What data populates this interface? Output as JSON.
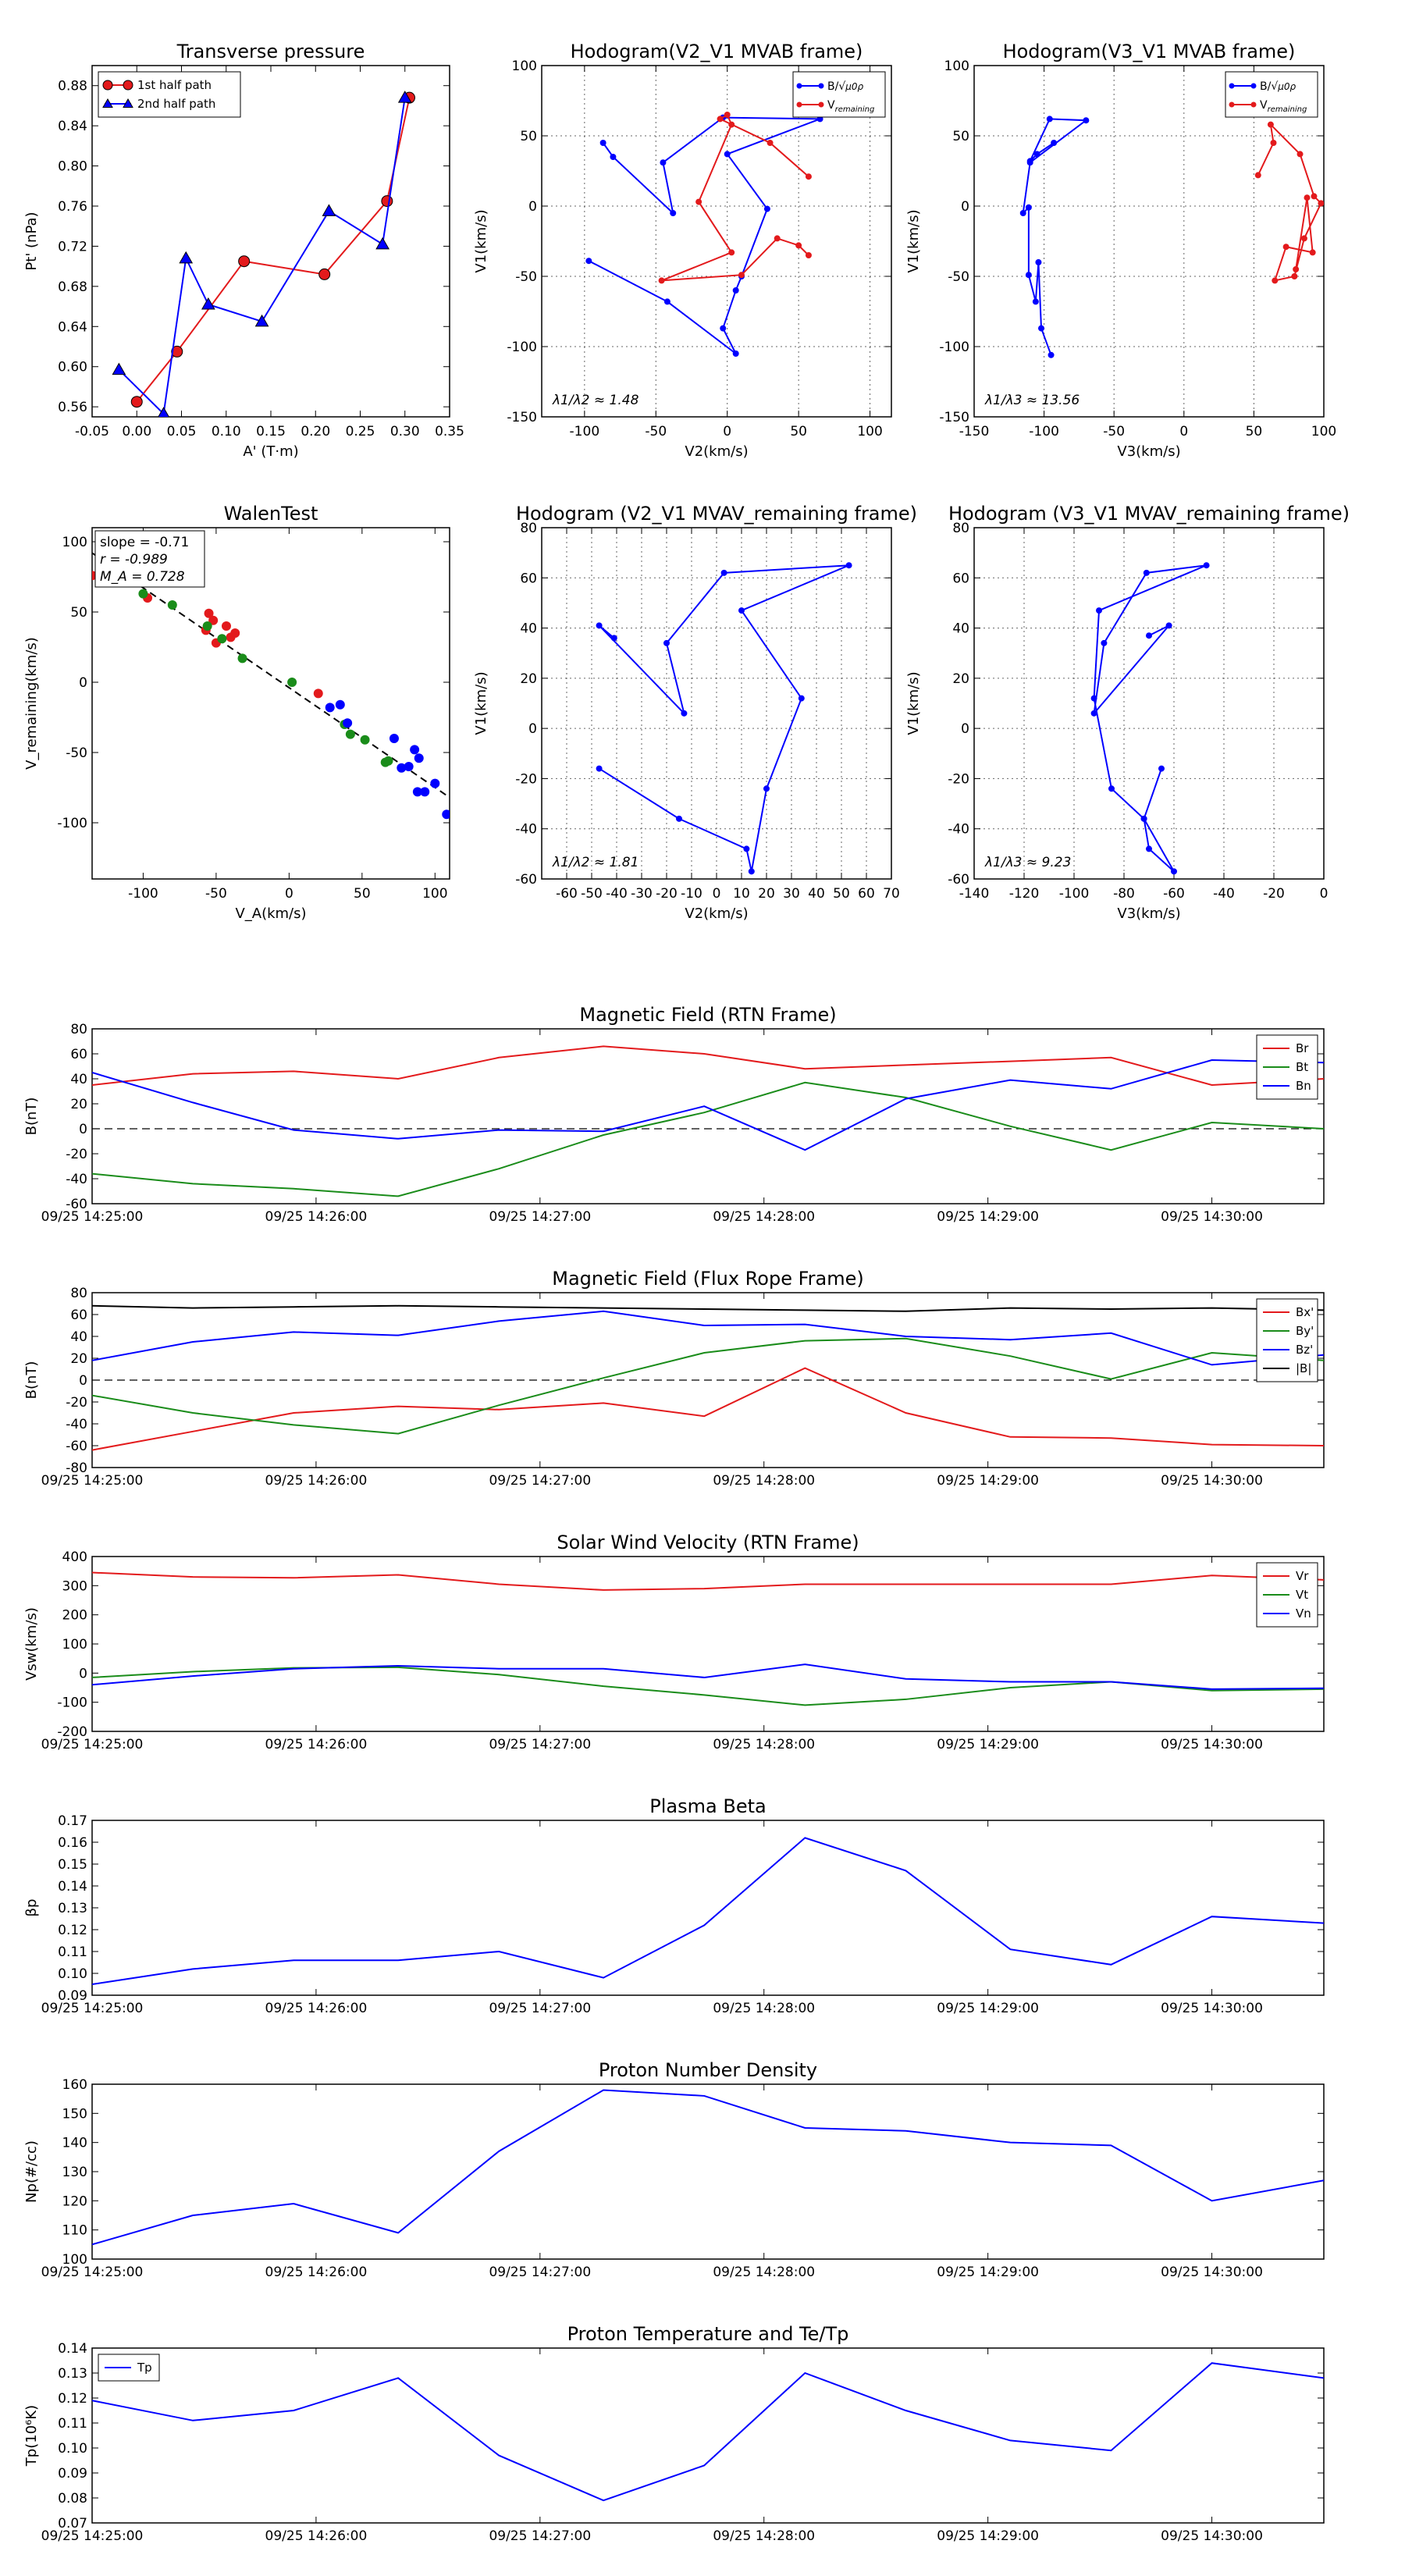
{
  "chart_data": [
    {
      "id": "transverse_pressure",
      "type": "line",
      "title": "Transverse pressure",
      "xlabel": "A' (T·m)",
      "ylabel": "Pt' (nPa)",
      "xlim": [
        -0.05,
        0.35
      ],
      "ylim": [
        0.55,
        0.9
      ],
      "xticks": [
        -0.05,
        0.0,
        0.05,
        0.1,
        0.15,
        0.2,
        0.25,
        0.3,
        0.35
      ],
      "yticks": [
        0.56,
        0.6,
        0.64,
        0.68,
        0.72,
        0.76,
        0.8,
        0.84,
        0.88
      ],
      "grid": false,
      "legend_position": "top-left",
      "series": [
        {
          "name": "1st half path",
          "color": "#e31a1c",
          "marker": "circle",
          "x": [
            0.0,
            0.045,
            0.12,
            0.21,
            0.28,
            0.305
          ],
          "y": [
            0.565,
            0.615,
            0.705,
            0.692,
            0.765,
            0.868
          ]
        },
        {
          "name": "2nd half path",
          "color": "#0000ff",
          "marker": "triangle",
          "x": [
            -0.02,
            0.03,
            0.055,
            0.08,
            0.14,
            0.215,
            0.275,
            0.3
          ],
          "y": [
            0.597,
            0.553,
            0.708,
            0.662,
            0.645,
            0.755,
            0.722,
            0.868
          ]
        }
      ]
    },
    {
      "id": "hodogram_v2_mvab",
      "type": "line",
      "title": "Hodogram(V2_V1 MVAB frame)",
      "xlabel": "V2(km/s)",
      "ylabel": "V1(km/s)",
      "xlim": [
        -130,
        115
      ],
      "ylim": [
        -150,
        100
      ],
      "xticks": [
        -100,
        -50,
        0,
        50,
        100
      ],
      "yticks": [
        -150,
        -100,
        -50,
        0,
        50,
        100
      ],
      "grid": true,
      "legend_position": "top-right",
      "annotation": "λ1/λ2 ≈ 1.48",
      "series": [
        {
          "name": "B/√μ0ρ",
          "color": "#0000ff",
          "marker": "dot",
          "x": [
            -87,
            -80,
            -38,
            -45,
            -3,
            65,
            0,
            28,
            10,
            6,
            -3,
            6,
            -42,
            -97
          ],
          "y": [
            45,
            35,
            -5,
            31,
            63,
            62,
            37,
            -2,
            -50,
            -60,
            -87,
            -105,
            -68,
            -39
          ]
        },
        {
          "name": "V_remaining",
          "color": "#e31a1c",
          "marker": "dot",
          "x": [
            57,
            30,
            -5,
            0,
            3,
            -20,
            3,
            -46,
            10,
            35,
            50,
            57
          ],
          "y": [
            21,
            45,
            62,
            65,
            58,
            3,
            -33,
            -53,
            -49,
            -23,
            -28,
            -35
          ]
        }
      ]
    },
    {
      "id": "hodogram_v3_mvab",
      "type": "line",
      "title": "Hodogram(V3_V1 MVAB frame)",
      "xlabel": "V3(km/s)",
      "ylabel": "V1(km/s)",
      "xlim": [
        -150,
        100
      ],
      "ylim": [
        -150,
        100
      ],
      "xticks": [
        -150,
        -100,
        -50,
        0,
        50,
        100
      ],
      "yticks": [
        -150,
        -100,
        -50,
        0,
        50,
        100
      ],
      "grid": true,
      "legend_position": "top-right",
      "annotation": "λ1/λ3 ≈ 13.56",
      "series": [
        {
          "name": "B/√μ0ρ",
          "color": "#0000ff",
          "marker": "dot",
          "x": [
            -93,
            -105,
            -110,
            -96,
            -70,
            -110,
            -115,
            -111,
            -111,
            -106,
            -104,
            -102,
            -95
          ],
          "y": [
            45,
            37,
            32,
            62,
            61,
            31,
            -5,
            -1,
            -49,
            -68,
            -40,
            -87,
            -106
          ]
        },
        {
          "name": "V_remaining",
          "color": "#e31a1c",
          "marker": "dot",
          "x": [
            53,
            64,
            62,
            83,
            93,
            98,
            86,
            79,
            65,
            73,
            92,
            88,
            80
          ],
          "y": [
            22,
            45,
            58,
            37,
            7,
            2,
            -23,
            -50,
            -53,
            -29,
            -33,
            6,
            -45
          ]
        }
      ]
    },
    {
      "id": "walen_test",
      "type": "scatter",
      "title": "WalenTest",
      "xlabel": "V_A(km/s)",
      "ylabel": "V_remaining(km/s)",
      "xlim": [
        -135,
        110
      ],
      "ylim": [
        -140,
        110
      ],
      "xticks": [
        -100,
        -50,
        0,
        50,
        100
      ],
      "yticks": [
        -100,
        -50,
        0,
        50,
        100
      ],
      "grid": false,
      "stats": [
        "slope = -0.71",
        "r = -0.989",
        "M_A = 0.728"
      ],
      "fit_line": {
        "x": [
          -135,
          110
        ],
        "y": [
          92,
          -82
        ]
      },
      "series": [
        {
          "name": "red",
          "color": "#e31a1c",
          "x": [
            -135,
            -97,
            -57,
            -55,
            -52,
            -50,
            -43,
            -40,
            -37,
            20
          ],
          "y": [
            76,
            60,
            37,
            49,
            44,
            28,
            40,
            32,
            35,
            -8
          ]
        },
        {
          "name": "green",
          "color": "#1a8c1a",
          "x": [
            -100,
            -80,
            -56,
            -46,
            -32,
            2,
            38,
            42,
            52,
            68,
            66
          ],
          "y": [
            63,
            55,
            40,
            31,
            17,
            0,
            -30,
            -37,
            -41,
            -56,
            -57
          ]
        },
        {
          "name": "blue",
          "color": "#0000ff",
          "x": [
            28,
            35,
            40,
            72,
            77,
            82,
            86,
            89,
            88,
            93,
            100,
            108
          ],
          "y": [
            -18,
            -16,
            -29,
            -40,
            -61,
            -60,
            -48,
            -54,
            -78,
            -78,
            -72,
            -94
          ]
        }
      ]
    },
    {
      "id": "hodogram_v2_mvav",
      "type": "line",
      "title": "Hodogram (V2_V1 MVAV_remaining frame)",
      "xlabel": "V2(km/s)",
      "ylabel": "V1(km/s)",
      "xlim": [
        -70,
        70
      ],
      "ylim": [
        -60,
        80
      ],
      "xticks": [
        -60,
        -50,
        -40,
        -30,
        -20,
        -10,
        0,
        10,
        20,
        30,
        40,
        50,
        60,
        70
      ],
      "yticks": [
        -60,
        -40,
        -20,
        0,
        20,
        40,
        60,
        80
      ],
      "grid": true,
      "annotation": "λ1/λ2 ≈ 1.81",
      "series": [
        {
          "name": "blue",
          "color": "#0000ff",
          "marker": "dot",
          "x": [
            -41,
            -47,
            -13,
            -20,
            3,
            53,
            10,
            34,
            20,
            14,
            12,
            -15,
            -47
          ],
          "y": [
            36,
            41,
            6,
            34,
            62,
            65,
            47,
            12,
            -24,
            -57,
            -48,
            -36,
            -16
          ]
        }
      ]
    },
    {
      "id": "hodogram_v3_mvav",
      "type": "line",
      "title": "Hodogram (V3_V1 MVAV_remaining frame)",
      "xlabel": "V3(km/s)",
      "ylabel": "V1(km/s)",
      "xlim": [
        -140,
        0
      ],
      "ylim": [
        -60,
        80
      ],
      "xticks": [
        -140,
        -120,
        -100,
        -80,
        -60,
        -40,
        -20,
        0
      ],
      "yticks": [
        -60,
        -40,
        -20,
        0,
        20,
        40,
        60,
        80
      ],
      "grid": true,
      "annotation": "λ1/λ3 ≈ 9.23",
      "series": [
        {
          "name": "blue",
          "color": "#0000ff",
          "marker": "dot",
          "x": [
            -70,
            -62,
            -92,
            -88,
            -71,
            -47,
            -90,
            -92,
            -85,
            -72,
            -70,
            -60,
            -72,
            -65
          ],
          "y": [
            37,
            41,
            6,
            34,
            62,
            65,
            47,
            12,
            -24,
            -36,
            -48,
            -57,
            -36,
            -16
          ]
        }
      ]
    },
    {
      "id": "magnetic_field_rtn",
      "type": "line",
      "title": "Magnetic Field (RTN Frame)",
      "ylabel": "B(nT)",
      "ylim": [
        -60,
        80
      ],
      "yticks": [
        -60,
        -40,
        -20,
        0,
        20,
        40,
        60,
        80
      ],
      "xlim_sec": [
        0,
        330
      ],
      "xticks": [
        "09/25 14:25:00",
        "09/25 14:26:00",
        "09/25 14:27:00",
        "09/25 14:28:00",
        "09/25 14:29:00",
        "09/25 14:30:00"
      ],
      "zero_line": true,
      "legend_position": "top-right",
      "x": [
        0,
        27,
        54,
        82,
        109,
        137,
        164,
        191,
        218,
        246,
        273,
        300,
        330
      ],
      "series": [
        {
          "name": "Br",
          "color": "#e31a1c",
          "values": [
            35,
            44,
            46,
            40,
            57,
            66,
            60,
            48,
            51,
            54,
            57,
            35,
            40
          ]
        },
        {
          "name": "Bt",
          "color": "#1a8c1a",
          "values": [
            -36,
            -44,
            -48,
            -54,
            -32,
            -5,
            13,
            37,
            25,
            2,
            -17,
            5,
            0
          ]
        },
        {
          "name": "Bn",
          "color": "#0000ff",
          "values": [
            45,
            21,
            -1,
            -8,
            -1,
            -2,
            18,
            -17,
            24,
            39,
            32,
            55,
            53
          ]
        }
      ]
    },
    {
      "id": "magnetic_field_flux_rope",
      "type": "line",
      "title": "Magnetic Field (Flux Rope Frame)",
      "ylabel": "B(nT)",
      "ylim": [
        -80,
        80
      ],
      "yticks": [
        -80,
        -60,
        -40,
        -20,
        0,
        20,
        40,
        60,
        80
      ],
      "xlim_sec": [
        0,
        330
      ],
      "xticks": [
        "09/25 14:25:00",
        "09/25 14:26:00",
        "09/25 14:27:00",
        "09/25 14:28:00",
        "09/25 14:29:00",
        "09/25 14:30:00"
      ],
      "zero_line": true,
      "legend_position": "top-right",
      "x": [
        0,
        27,
        54,
        82,
        109,
        137,
        164,
        191,
        218,
        246,
        273,
        300,
        330
      ],
      "series": [
        {
          "name": "Bx'",
          "color": "#e31a1c",
          "values": [
            -64,
            -47,
            -30,
            -24,
            -27,
            -21,
            -33,
            11,
            -30,
            -52,
            -53,
            -59,
            -60
          ]
        },
        {
          "name": "By'",
          "color": "#1a8c1a",
          "values": [
            -14,
            -30,
            -41,
            -49,
            -23,
            2,
            25,
            36,
            38,
            22,
            1,
            25,
            18
          ]
        },
        {
          "name": "Bz'",
          "color": "#0000ff",
          "values": [
            18,
            35,
            44,
            41,
            54,
            63,
            50,
            51,
            40,
            37,
            43,
            14,
            23
          ]
        },
        {
          "name": "|B|",
          "color": "#000000",
          "values": [
            68,
            66,
            67,
            68,
            67,
            66,
            65,
            64,
            63,
            66,
            65,
            66,
            64
          ]
        }
      ]
    },
    {
      "id": "solar_wind_velocity",
      "type": "line",
      "title": "Solar Wind Velocity (RTN Frame)",
      "ylabel": "Vsw(km/s)",
      "ylim": [
        -200,
        400
      ],
      "yticks": [
        -200,
        -100,
        0,
        100,
        200,
        300,
        400
      ],
      "xlim_sec": [
        0,
        330
      ],
      "xticks": [
        "09/25 14:25:00",
        "09/25 14:26:00",
        "09/25 14:27:00",
        "09/25 14:28:00",
        "09/25 14:29:00",
        "09/25 14:30:00"
      ],
      "legend_position": "top-right",
      "x": [
        0,
        27,
        54,
        82,
        109,
        137,
        164,
        191,
        218,
        246,
        273,
        300,
        330
      ],
      "series": [
        {
          "name": "Vr",
          "color": "#e31a1c",
          "values": [
            345,
            330,
            327,
            337,
            305,
            285,
            290,
            305,
            305,
            305,
            305,
            335,
            320
          ]
        },
        {
          "name": "Vt",
          "color": "#1a8c1a",
          "values": [
            -15,
            5,
            18,
            20,
            -5,
            -45,
            -75,
            -110,
            -90,
            -50,
            -30,
            -60,
            -55
          ]
        },
        {
          "name": "Vn",
          "color": "#0000ff",
          "values": [
            -40,
            -10,
            15,
            25,
            15,
            15,
            -15,
            30,
            -20,
            -30,
            -30,
            -55,
            -52
          ]
        }
      ]
    },
    {
      "id": "plasma_beta",
      "type": "line",
      "title": "Plasma Beta",
      "ylabel": "βp",
      "ylim": [
        0.09,
        0.17
      ],
      "yticks": [
        0.09,
        0.1,
        0.11,
        0.12,
        0.13,
        0.14,
        0.15,
        0.16,
        0.17
      ],
      "xlim_sec": [
        0,
        330
      ],
      "xticks": [
        "09/25 14:25:00",
        "09/25 14:26:00",
        "09/25 14:27:00",
        "09/25 14:28:00",
        "09/25 14:29:00",
        "09/25 14:30:00"
      ],
      "x": [
        0,
        27,
        54,
        82,
        109,
        137,
        164,
        191,
        218,
        246,
        273,
        300,
        330
      ],
      "series": [
        {
          "name": "beta",
          "color": "#0000ff",
          "values": [
            0.095,
            0.102,
            0.106,
            0.106,
            0.11,
            0.098,
            0.122,
            0.162,
            0.147,
            0.111,
            0.104,
            0.126,
            0.123
          ]
        }
      ]
    },
    {
      "id": "proton_number_density",
      "type": "line",
      "title": "Proton Number Density",
      "ylabel": "Np(#/cc)",
      "ylim": [
        100,
        160
      ],
      "yticks": [
        100,
        110,
        120,
        130,
        140,
        150,
        160
      ],
      "xlim_sec": [
        0,
        330
      ],
      "xticks": [
        "09/25 14:25:00",
        "09/25 14:26:00",
        "09/25 14:27:00",
        "09/25 14:28:00",
        "09/25 14:29:00",
        "09/25 14:30:00"
      ],
      "x": [
        0,
        27,
        54,
        82,
        109,
        137,
        164,
        191,
        218,
        246,
        273,
        300,
        330
      ],
      "series": [
        {
          "name": "Np",
          "color": "#0000ff",
          "values": [
            105,
            115,
            119,
            109,
            137,
            158,
            156,
            145,
            144,
            140,
            139,
            120,
            127
          ]
        }
      ]
    },
    {
      "id": "proton_temperature",
      "type": "line",
      "title": "Proton Temperature and Te/Tp",
      "ylabel": "Tp(10⁶K)",
      "ylim": [
        0.07,
        0.14
      ],
      "yticks": [
        0.07,
        0.08,
        0.09,
        0.1,
        0.11,
        0.12,
        0.13,
        0.14
      ],
      "xlim_sec": [
        0,
        330
      ],
      "xticks": [
        "09/25 14:25:00",
        "09/25 14:26:00",
        "09/25 14:27:00",
        "09/25 14:28:00",
        "09/25 14:29:00",
        "09/25 14:30:00"
      ],
      "legend_position": "top-left",
      "x": [
        0,
        27,
        54,
        82,
        109,
        137,
        164,
        191,
        218,
        246,
        273,
        300,
        330
      ],
      "series": [
        {
          "name": "Tp",
          "color": "#0000ff",
          "values": [
            0.119,
            0.111,
            0.115,
            0.128,
            0.097,
            0.079,
            0.093,
            0.13,
            0.115,
            0.103,
            0.099,
            0.134,
            0.128
          ]
        }
      ]
    }
  ]
}
